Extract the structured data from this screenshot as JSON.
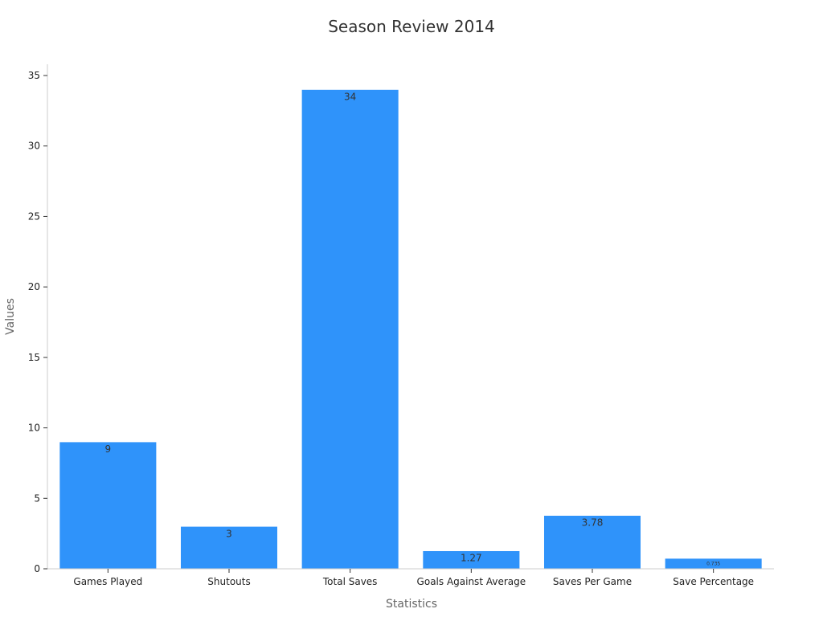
{
  "chart_data": {
    "type": "bar",
    "title": "Season Review 2014",
    "xlabel": "Statistics",
    "ylabel": "Values",
    "categories": [
      "Games Played",
      "Shutouts",
      "Total Saves",
      "Goals Against Average",
      "Saves Per Game",
      "Save Percentage"
    ],
    "values": [
      9,
      3,
      34,
      1.27,
      3.78,
      0.735
    ],
    "data_labels": [
      "9",
      "3",
      "34",
      "1.27",
      "3.78",
      "0.735"
    ],
    "ylim": [
      0,
      35
    ],
    "yticks": [
      0,
      5,
      10,
      15,
      20,
      25,
      30,
      35
    ],
    "grid": false,
    "legend": "none",
    "bar_color": "#2f93fa"
  }
}
